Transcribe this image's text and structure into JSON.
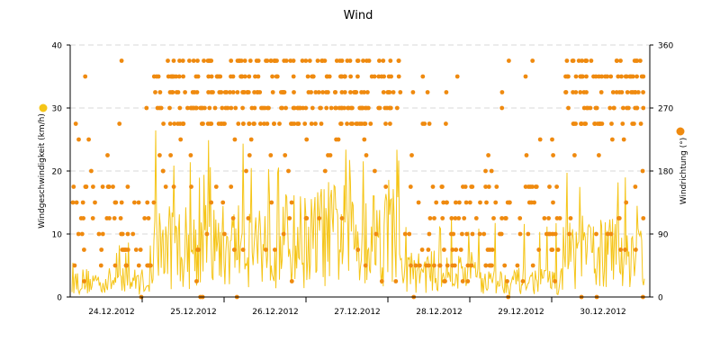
{
  "colors": {
    "speed": "#f5c518",
    "direction": "#ef8a0f",
    "axis": "#000000",
    "grid": "#d9d9d9",
    "background": "#ffffff"
  },
  "chart_data": {
    "type": "scatter",
    "title": "Wind",
    "ylabel_left": "Windgeschwindigkeit (km/h)",
    "ylabel_right": "Windrichtung (°)",
    "ylim_left": [
      0,
      40
    ],
    "ylim_right": [
      0,
      360
    ],
    "yticks_left": [
      "0",
      "10",
      "20",
      "30",
      "40"
    ],
    "yticks_right": [
      "0",
      "90",
      "180",
      "270",
      "360"
    ],
    "grid": true,
    "legend": "axis markers beside each y-axis title",
    "x_categories": [
      "24.12.2012",
      "25.12.2012",
      "26.12.2012",
      "27.12.2012",
      "28.12.2012",
      "29.12.2012",
      "30.12.2012"
    ],
    "series": [
      {
        "kind": "line",
        "axis": "left",
        "description_color": "speed",
        "day_profiles": [
          {
            "day": "24.12.2012",
            "mean": 2.5,
            "peak": 9
          },
          {
            "day": "25.12.2012",
            "mean": 8,
            "peak": 28
          },
          {
            "day": "26.12.2012",
            "mean": 9,
            "peak": 27
          },
          {
            "day": "27.12.2012",
            "mean": 10,
            "peak": 28
          },
          {
            "day": "28.12.2012",
            "mean": 4,
            "peak": 14
          },
          {
            "day": "29.12.2012",
            "mean": 2.5,
            "peak": 17
          },
          {
            "day": "30.12.2012",
            "mean": 7,
            "peak": 21
          }
        ]
      },
      {
        "kind": "scatter",
        "axis": "right",
        "description_color": "direction",
        "directions": [
          0,
          22.5,
          45,
          67.5,
          90,
          112.5,
          135,
          157.5,
          180,
          202.5,
          225,
          247.5,
          270,
          292.5,
          315,
          337.5
        ]
      }
    ]
  }
}
